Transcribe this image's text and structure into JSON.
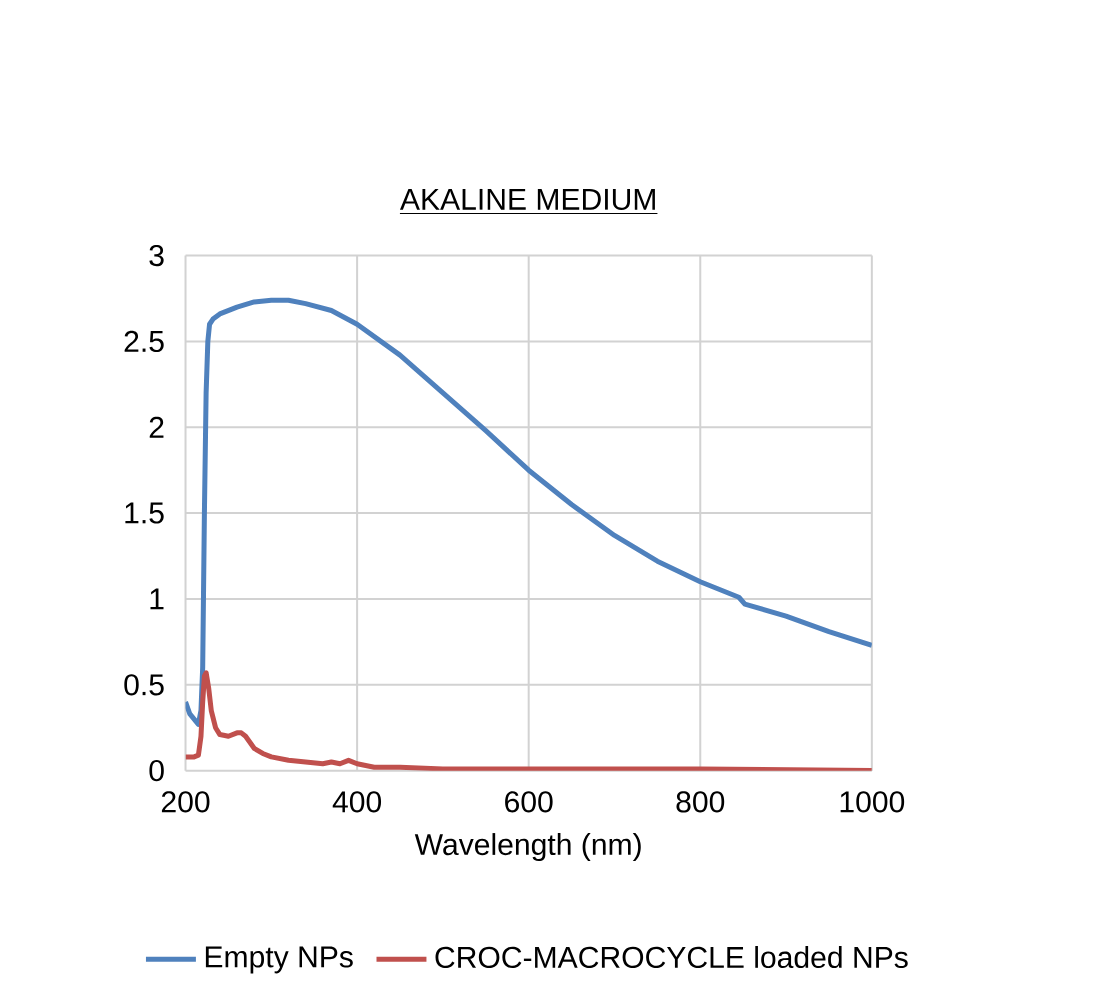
{
  "chart_data": {
    "type": "line",
    "title": "AKALINE MEDIUM",
    "xlabel": "Wavelength (nm)",
    "xlim": [
      200,
      1000
    ],
    "xticks": [
      200,
      400,
      600,
      800,
      1000
    ],
    "ylim": [
      0,
      3
    ],
    "yticks": [
      0,
      0.5,
      1,
      1.5,
      2,
      2.5,
      3
    ],
    "grid": true,
    "legend": "bottom",
    "marker": "none",
    "line_style": "solid",
    "series": [
      {
        "name": "Empty NPs",
        "color": "#4f81bd",
        "x": [
          200,
          205,
          210,
          215,
          218,
          220,
          222,
          224,
          226,
          228,
          232,
          240,
          260,
          280,
          300,
          320,
          340,
          370,
          400,
          450,
          500,
          550,
          600,
          650,
          700,
          750,
          800,
          845,
          852,
          900,
          950,
          1000
        ],
        "values": [
          0.4,
          0.33,
          0.3,
          0.27,
          0.35,
          0.6,
          1.5,
          2.2,
          2.5,
          2.6,
          2.63,
          2.66,
          2.7,
          2.73,
          2.74,
          2.74,
          2.72,
          2.68,
          2.6,
          2.42,
          2.2,
          1.98,
          1.75,
          1.55,
          1.37,
          1.22,
          1.1,
          1.01,
          0.97,
          0.9,
          0.81,
          0.73
        ]
      },
      {
        "name": "CROC-MACROCYCLE loaded NPs",
        "color": "#c0504d",
        "x": [
          200,
          210,
          215,
          218,
          220,
          222,
          224,
          227,
          230,
          235,
          240,
          250,
          260,
          265,
          270,
          280,
          290,
          300,
          320,
          340,
          360,
          370,
          380,
          390,
          400,
          420,
          450,
          500,
          600,
          700,
          800,
          1000
        ],
        "values": [
          0.08,
          0.08,
          0.09,
          0.2,
          0.4,
          0.55,
          0.57,
          0.48,
          0.35,
          0.25,
          0.21,
          0.2,
          0.22,
          0.22,
          0.2,
          0.13,
          0.1,
          0.08,
          0.06,
          0.05,
          0.04,
          0.05,
          0.04,
          0.06,
          0.04,
          0.02,
          0.02,
          0.01,
          0.01,
          0.01,
          0.01,
          0.0
        ]
      }
    ]
  }
}
